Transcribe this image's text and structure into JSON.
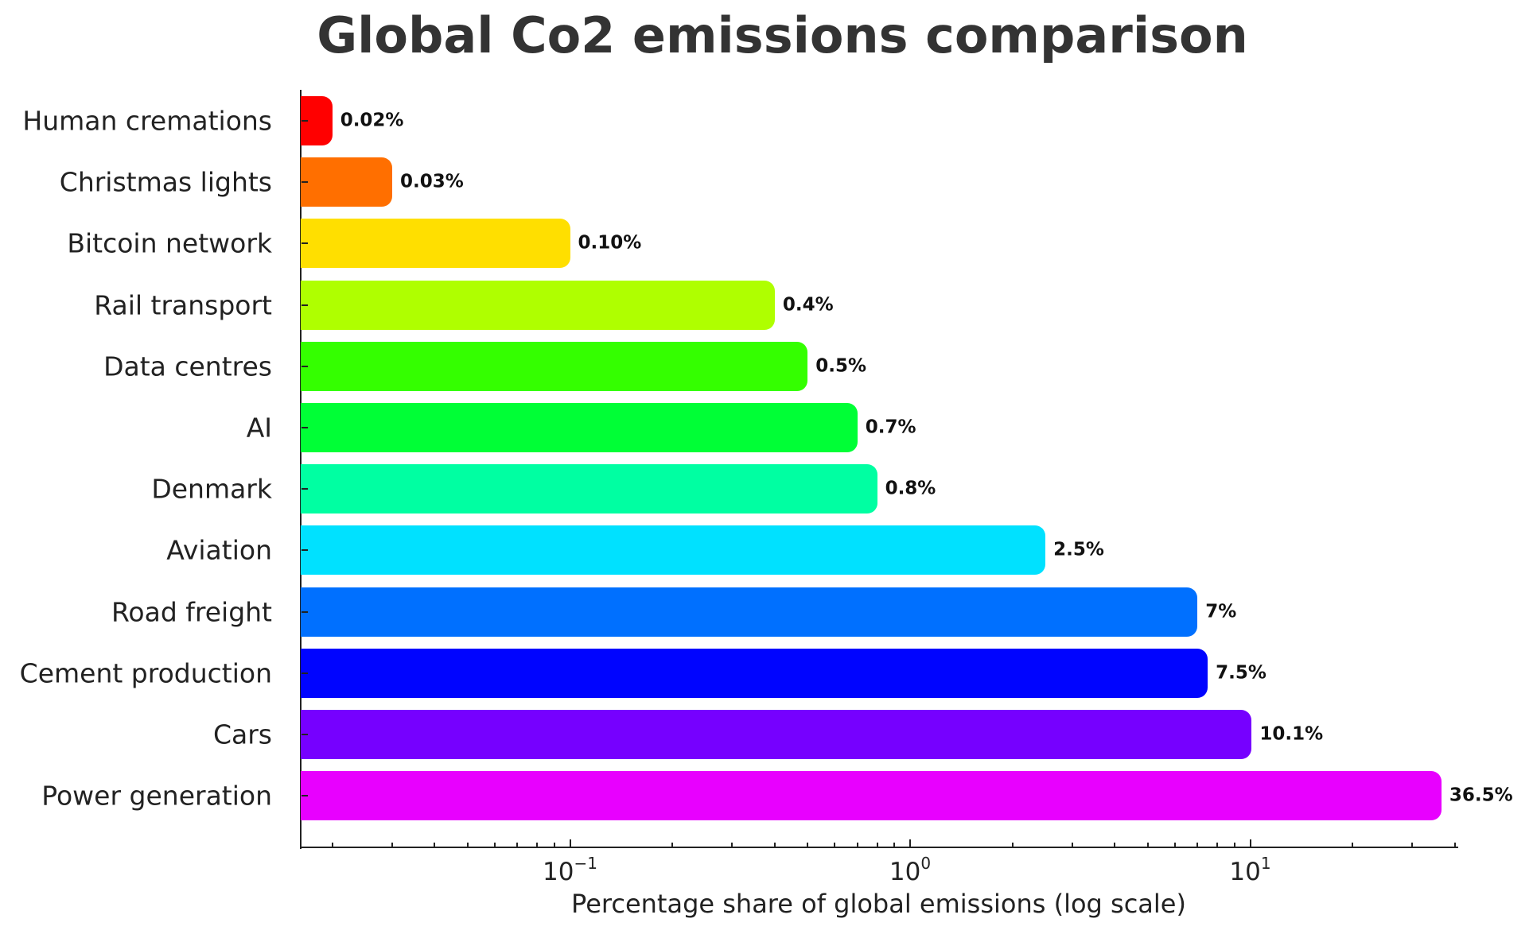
{
  "chart_data": {
    "type": "bar",
    "orientation": "horizontal",
    "title": "Global Co2 emissions comparison",
    "xlabel": "Percentage share of global emissions (log scale)",
    "ylabel": "",
    "xscale": "log",
    "xlim": [
      0.016,
      40.4
    ],
    "grid": false,
    "legend": null,
    "x_tick_labels": [
      {
        "base": "10",
        "exp": "−1",
        "value": 0.1
      },
      {
        "base": "10",
        "exp": "0",
        "value": 1
      },
      {
        "base": "10",
        "exp": "1",
        "value": 10
      }
    ],
    "categories": [
      "Human cremations",
      "Christmas lights",
      "Bitcoin network",
      "Rail transport",
      "Data centres",
      "AI",
      "Denmark",
      "Aviation",
      "Road freight",
      "Cement production",
      "Cars",
      "Power generation"
    ],
    "values": [
      0.02,
      0.03,
      0.1,
      0.4,
      0.5,
      0.7,
      0.8,
      2.5,
      7,
      7.5,
      10.1,
      36.5
    ],
    "value_labels": [
      "0.02%",
      "0.03%",
      "0.10%",
      "0.4%",
      "0.5%",
      "0.7%",
      "0.8%",
      "2.5%",
      "7%",
      "7.5%",
      "10.1%",
      "36.5%"
    ],
    "colors": [
      "#ff0000",
      "#ff6f00",
      "#ffdf00",
      "#afff00",
      "#34ff00",
      "#00ff36",
      "#00ffa2",
      "#00e1ff",
      "#0070ff",
      "#0004ff",
      "#7600ff",
      "#e800ff"
    ]
  }
}
